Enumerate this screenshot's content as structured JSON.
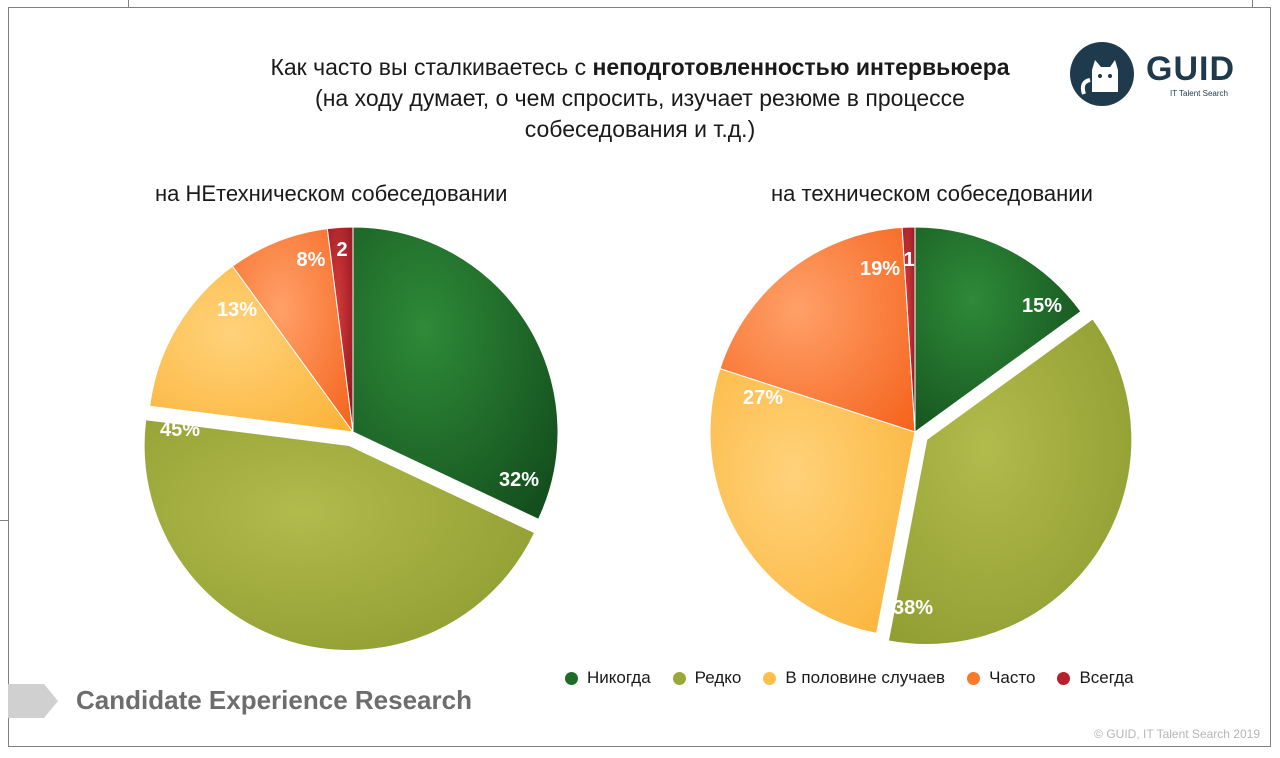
{
  "title": {
    "prefix": "Как часто вы сталкиваетесь с ",
    "bold": "неподготовленностью интервьюера",
    "line2": "(на ходу думает, о чем спросить, изучает резюме в процессе",
    "line3": "собеседования и т.д.)"
  },
  "logo": {
    "text": "GUID",
    "subtitle": "IT Talent Search"
  },
  "footer": {
    "brand": "Candidate Experience Research",
    "copyright": "© GUID, IT Talent Search 2019"
  },
  "colors": {
    "never": "#1f6b2a",
    "rarely": "#9aa83a",
    "half": "#fcc04a",
    "often": "#fa7a2c",
    "always": "#b5202a"
  },
  "chart_data": [
    {
      "type": "pie",
      "title": "на НЕтехническом собеседовании",
      "categories": [
        "Никогда",
        "Редко",
        "В половине случаев",
        "Часто",
        "Всегда"
      ],
      "values": [
        32,
        45,
        13,
        8,
        2
      ],
      "labels": [
        "32%",
        "45%",
        "13%",
        "8%",
        "2"
      ],
      "exploded": "Редко"
    },
    {
      "type": "pie",
      "title": "на техническом собеседовании",
      "categories": [
        "Никогда",
        "Редко",
        "В половине случаев",
        "Часто",
        "Всегда"
      ],
      "values": [
        15,
        38,
        27,
        19,
        1
      ],
      "labels": [
        "15%",
        "38%",
        "27%",
        "19%",
        "1"
      ],
      "exploded": "Редко"
    }
  ],
  "legend": [
    {
      "label": "Никогда",
      "key": "never"
    },
    {
      "label": "Редко",
      "key": "rarely"
    },
    {
      "label": "В половине случаев",
      "key": "half"
    },
    {
      "label": "Часто",
      "key": "often"
    },
    {
      "label": "Всегда",
      "key": "always"
    }
  ]
}
